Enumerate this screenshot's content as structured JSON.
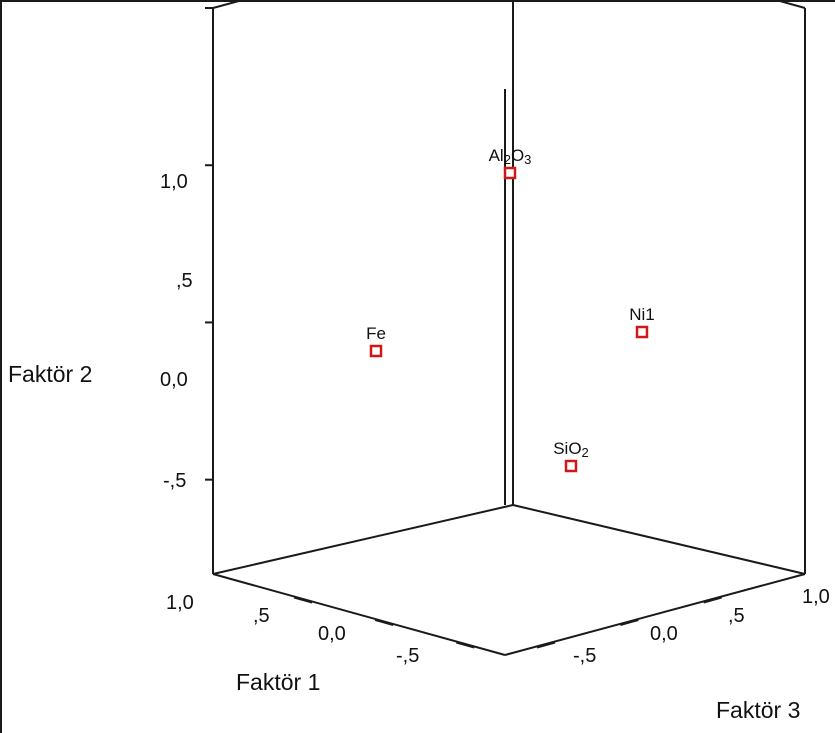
{
  "chart_data": {
    "type": "scatter",
    "subtype": "3d-loading-plot",
    "axes": {
      "x": {
        "label": "Faktör 1",
        "ticks": [
          "1,0",
          ",5",
          "0,0",
          "-,5"
        ]
      },
      "y": {
        "label": "Faktör 2",
        "ticks": [
          "1,0",
          ",5",
          "0,0",
          "-,5"
        ]
      },
      "z": {
        "label": "Faktör 3",
        "ticks": [
          "-,5",
          "0,0",
          ",5",
          "1,0"
        ]
      }
    },
    "points": [
      {
        "label": "Al2O3",
        "text_main": "Al",
        "sub1": "2",
        "mid": "O",
        "sub2": "3",
        "f1": 0.35,
        "f2": 1.0,
        "f3": 0.1
      },
      {
        "label": "Fe",
        "f1": 0.9,
        "f2": 0.1,
        "f3": -0.3
      },
      {
        "label": "Ni1",
        "f1": 0.05,
        "f2": 0.2,
        "f3": 0.85
      },
      {
        "label": "SiO2",
        "text_main": "SiO",
        "sub1": "2",
        "f1": -0.1,
        "f2": -0.45,
        "f3": 0.55
      }
    ],
    "marker_color": "#d01818",
    "grid": false
  }
}
